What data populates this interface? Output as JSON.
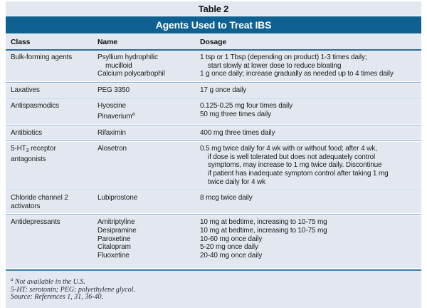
{
  "table": {
    "label": "Table 2",
    "title": "Agents Used to Treat IBS",
    "columns": [
      "Class",
      "Name",
      "Dosage"
    ],
    "rows": [
      {
        "class_lines": [
          {
            "text": "Bulk-forming agents",
            "indent": false
          }
        ],
        "name_lines": [
          {
            "text": "Psyllium hydrophilic",
            "indent": false
          },
          {
            "text": "mucilloid",
            "indent": true
          },
          {
            "text": "Calcium polycarbophil",
            "indent": false
          }
        ],
        "dosage_lines": [
          {
            "text": "1 tsp or 1 Tbsp (depending on product) 1-3 times daily;",
            "indent": false
          },
          {
            "text": "start slowly at lower dose to reduce bloating",
            "indent": true
          },
          {
            "text": "1 g once daily; increase gradually as needed up to 4 times daily",
            "indent": false
          }
        ]
      },
      {
        "class_lines": [
          {
            "text": "Laxatives",
            "indent": false
          }
        ],
        "name_lines": [
          {
            "text": "PEG 3350",
            "indent": false
          }
        ],
        "dosage_lines": [
          {
            "text": "17 g once daily",
            "indent": false
          }
        ]
      },
      {
        "class_lines": [
          {
            "text": "Antispasmodics",
            "indent": false
          }
        ],
        "name_lines": [
          {
            "text": "Hyoscine",
            "indent": false
          },
          {
            "text": "Pinaverium^a^",
            "indent": false
          }
        ],
        "dosage_lines": [
          {
            "text": "0.125-0.25 mg four times daily",
            "indent": false
          },
          {
            "text": "50 mg three times daily",
            "indent": false
          }
        ]
      },
      {
        "class_lines": [
          {
            "text": "Antibiotics",
            "indent": false
          }
        ],
        "name_lines": [
          {
            "text": "Rifaximin",
            "indent": false
          }
        ],
        "dosage_lines": [
          {
            "text": "400 mg three times daily",
            "indent": false
          }
        ]
      },
      {
        "class_lines": [
          {
            "text": "5-HT_3_ receptor",
            "indent": false
          },
          {
            "text": "antagonists",
            "indent": false
          }
        ],
        "name_lines": [
          {
            "text": "Alosetron",
            "indent": false
          }
        ],
        "dosage_lines": [
          {
            "text": "0.5 mg twice daily for 4 wk with or without food; after 4 wk,",
            "indent": false
          },
          {
            "text": "if dose is well tolerated but does not adequately control",
            "indent": true
          },
          {
            "text": "symptoms, may increase to 1 mg twice daily. Discontinue",
            "indent": true
          },
          {
            "text": "if patient has inadequate symptom control after taking 1 mg",
            "indent": true
          },
          {
            "text": "twice daily for 4 wk",
            "indent": true
          }
        ]
      },
      {
        "class_lines": [
          {
            "text": "Chloride channel 2",
            "indent": false
          },
          {
            "text": "activators",
            "indent": false
          }
        ],
        "name_lines": [
          {
            "text": "Lubiprostone",
            "indent": false
          }
        ],
        "dosage_lines": [
          {
            "text": "8 mcg twice daily",
            "indent": false
          }
        ]
      },
      {
        "class_lines": [
          {
            "text": "Antidepressants",
            "indent": false
          }
        ],
        "name_lines": [
          {
            "text": "Amitriptyline",
            "indent": false
          },
          {
            "text": "Desipramine",
            "indent": false
          },
          {
            "text": "Paroxetine",
            "indent": false
          },
          {
            "text": "Citalopram",
            "indent": false
          },
          {
            "text": "Fluoxetine",
            "indent": false
          }
        ],
        "dosage_lines": [
          {
            "text": "10 mg at bedtime, increasing to 10-75 mg",
            "indent": false
          },
          {
            "text": "10 mg at bedtime, increasing to 10-75 mg",
            "indent": false
          },
          {
            "text": "10-60 mg once daily",
            "indent": false
          },
          {
            "text": "5-20 mg once daily",
            "indent": false
          },
          {
            "text": "20-40 mg once daily",
            "indent": false
          }
        ]
      }
    ],
    "footnotes": [
      "^a^ Not available in the U.S.",
      "5-HT: serotonin; PEG: polyethylene glycol.",
      "Source: References 1, 31, 36-40."
    ],
    "colors": {
      "band_bg": "#e3e7ef",
      "title_bar_bg": "#0e6191",
      "title_text": "#ffffff",
      "header_rule": "#2a6ca0",
      "row_rule": "#7fa9cd",
      "footer_rule": "#4e88b2",
      "text": "#1d1d1d",
      "footnote_text": "#2e2e38"
    }
  }
}
